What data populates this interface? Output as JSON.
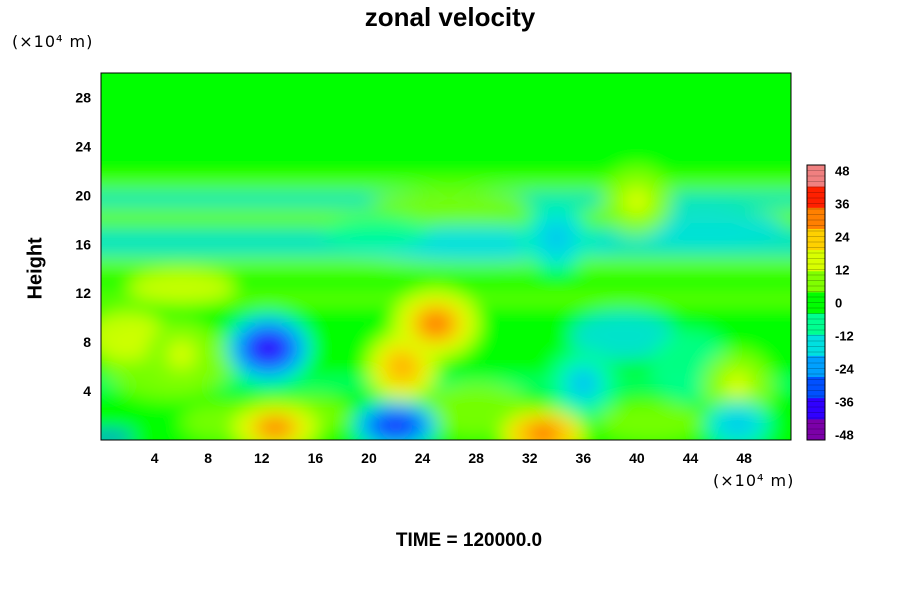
{
  "chart_data": {
    "type": "heatmap",
    "title": "zonal velocity",
    "ylabel": "Height",
    "y_unit": "(×10⁴ m)",
    "x_unit": "(×10⁴ m)",
    "x_ticks": [
      4,
      8,
      12,
      16,
      20,
      24,
      28,
      32,
      36,
      40,
      44,
      48
    ],
    "y_ticks": [
      4,
      8,
      12,
      16,
      20,
      24,
      28
    ],
    "xlim": [
      0,
      51.5
    ],
    "ylim": [
      0,
      30
    ],
    "colorbar": {
      "ticks": [
        48,
        36,
        24,
        12,
        0,
        -12,
        -24,
        -36,
        -48
      ],
      "range": [
        -50,
        50
      ],
      "colors": [
        "#7b00a8",
        "#3000ff",
        "#0050ff",
        "#00a0ff",
        "#00e0e0",
        "#00ff90",
        "#00ff00",
        "#80ff00",
        "#d8ff00",
        "#ffd000",
        "#ff8000",
        "#ff2000",
        "#f08080"
      ]
    },
    "annotation": "TIME = 120000.0",
    "features": [
      {
        "x": 12.5,
        "y": 7.5,
        "value": -42
      },
      {
        "x": 22.5,
        "y": 6.0,
        "value": 30
      },
      {
        "x": 13.0,
        "y": 1.0,
        "value": 34
      },
      {
        "x": 22.0,
        "y": 1.2,
        "value": -40
      },
      {
        "x": 33.0,
        "y": 0.5,
        "value": 38
      },
      {
        "x": 36.0,
        "y": 4.6,
        "value": -20
      },
      {
        "x": 47.5,
        "y": 4.5,
        "value": 16
      },
      {
        "x": 47.5,
        "y": 1.3,
        "value": -22
      },
      {
        "x": 34.0,
        "y": 16.5,
        "value": -22
      },
      {
        "x": 40.0,
        "y": 19.5,
        "value": 14
      },
      {
        "x": 6.0,
        "y": 7.0,
        "value": 14
      },
      {
        "x": 25.0,
        "y": 9.5,
        "value": 32
      }
    ]
  }
}
